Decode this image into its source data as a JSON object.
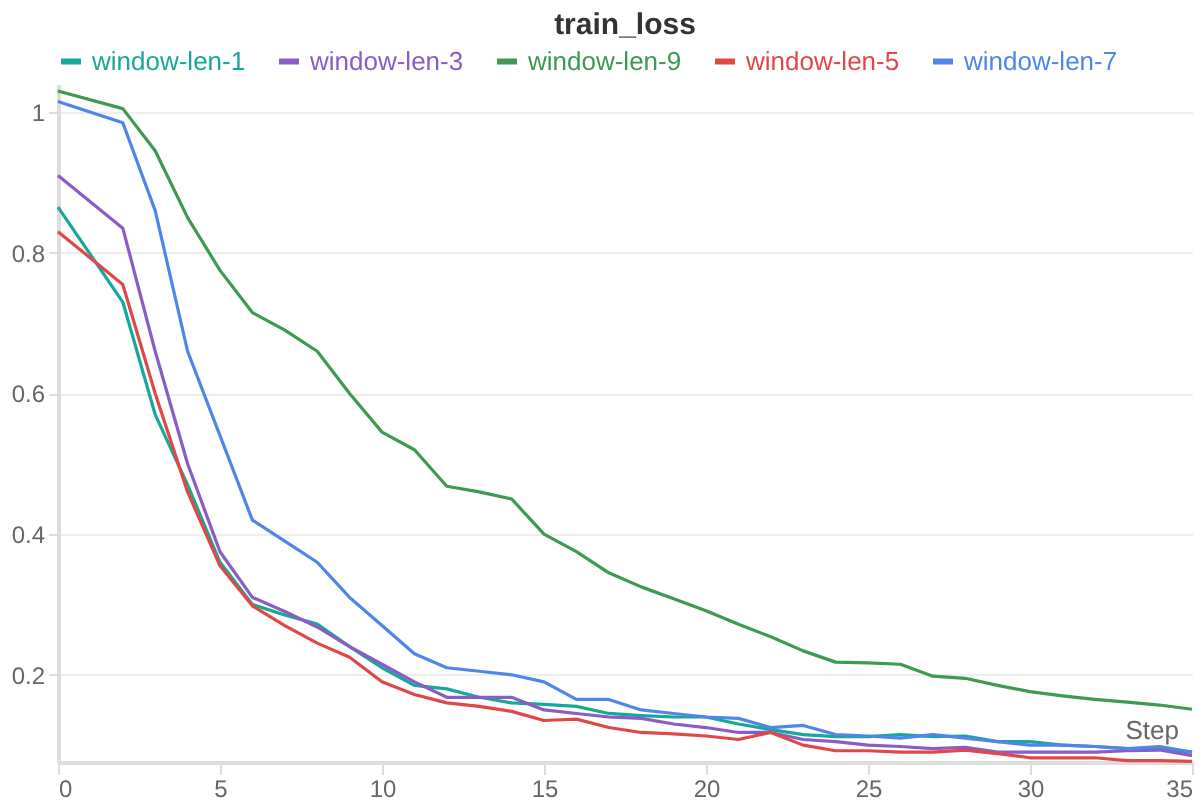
{
  "chart_data": {
    "type": "line",
    "title": "train_loss",
    "xlabel": "Step",
    "x": [
      0,
      2,
      3,
      4,
      5,
      6,
      7,
      8,
      9,
      10,
      11,
      12,
      13,
      14,
      15,
      16,
      17,
      18,
      19,
      20,
      21,
      22,
      23,
      24,
      25,
      26,
      27,
      28,
      29,
      30,
      31,
      32,
      33,
      34,
      35
    ],
    "series": [
      {
        "name": "window-len-1",
        "color": "#17a89a",
        "values": [
          0.865,
          0.73,
          0.57,
          0.47,
          0.36,
          0.3,
          0.285,
          0.272,
          0.24,
          0.21,
          0.185,
          0.18,
          0.168,
          0.16,
          0.158,
          0.155,
          0.145,
          0.142,
          0.14,
          0.14,
          0.13,
          0.122,
          0.115,
          0.112,
          0.112,
          0.115,
          0.112,
          0.113,
          0.105,
          0.105,
          0.1,
          0.098,
          0.095,
          0.095,
          0.09
        ]
      },
      {
        "name": "window-len-3",
        "color": "#8a5cc7",
        "values": [
          0.91,
          0.835,
          0.66,
          0.5,
          0.375,
          0.31,
          0.29,
          0.268,
          0.24,
          0.215,
          0.19,
          0.168,
          0.168,
          0.168,
          0.15,
          0.145,
          0.14,
          0.138,
          0.13,
          0.125,
          0.118,
          0.118,
          0.108,
          0.105,
          0.1,
          0.098,
          0.095,
          0.097,
          0.09,
          0.09,
          0.09,
          0.09,
          0.092,
          0.093,
          0.085
        ]
      },
      {
        "name": "window-len-9",
        "color": "#3d9a50",
        "values": [
          1.03,
          1.005,
          0.945,
          0.85,
          0.775,
          0.715,
          0.69,
          0.66,
          0.6,
          0.545,
          0.52,
          0.468,
          0.46,
          0.45,
          0.4,
          0.375,
          0.345,
          0.325,
          0.308,
          0.291,
          0.272,
          0.254,
          0.234,
          0.218,
          0.217,
          0.215,
          0.198,
          0.195,
          0.185,
          0.176,
          0.17,
          0.165,
          0.161,
          0.157,
          0.151
        ]
      },
      {
        "name": "window-len-5",
        "color": "#e04848",
        "values": [
          0.83,
          0.755,
          0.6,
          0.46,
          0.355,
          0.298,
          0.27,
          0.245,
          0.225,
          0.19,
          0.172,
          0.16,
          0.155,
          0.148,
          0.135,
          0.137,
          0.125,
          0.118,
          0.116,
          0.113,
          0.108,
          0.118,
          0.1,
          0.092,
          0.092,
          0.09,
          0.09,
          0.093,
          0.088,
          0.082,
          0.082,
          0.082,
          0.078,
          0.078,
          0.077
        ]
      },
      {
        "name": "window-len-7",
        "color": "#4f86e8",
        "values": [
          1.015,
          0.985,
          0.86,
          0.66,
          0.54,
          0.42,
          0.39,
          0.36,
          0.31,
          0.27,
          0.23,
          0.21,
          0.205,
          0.2,
          0.19,
          0.165,
          0.165,
          0.15,
          0.145,
          0.14,
          0.138,
          0.125,
          0.128,
          0.115,
          0.113,
          0.11,
          0.115,
          0.11,
          0.105,
          0.1,
          0.1,
          0.098,
          0.095,
          0.098,
          0.09
        ]
      }
    ],
    "xlim": [
      0,
      35
    ],
    "xticks": [
      0,
      5,
      10,
      15,
      20,
      25,
      30,
      35
    ],
    "ylim": [
      0.076,
      1.04
    ],
    "yticks": [
      0.2,
      0.4,
      0.6,
      0.8,
      1
    ],
    "grid": "y",
    "legend": "top",
    "marker": "none",
    "line_style": "solid"
  }
}
